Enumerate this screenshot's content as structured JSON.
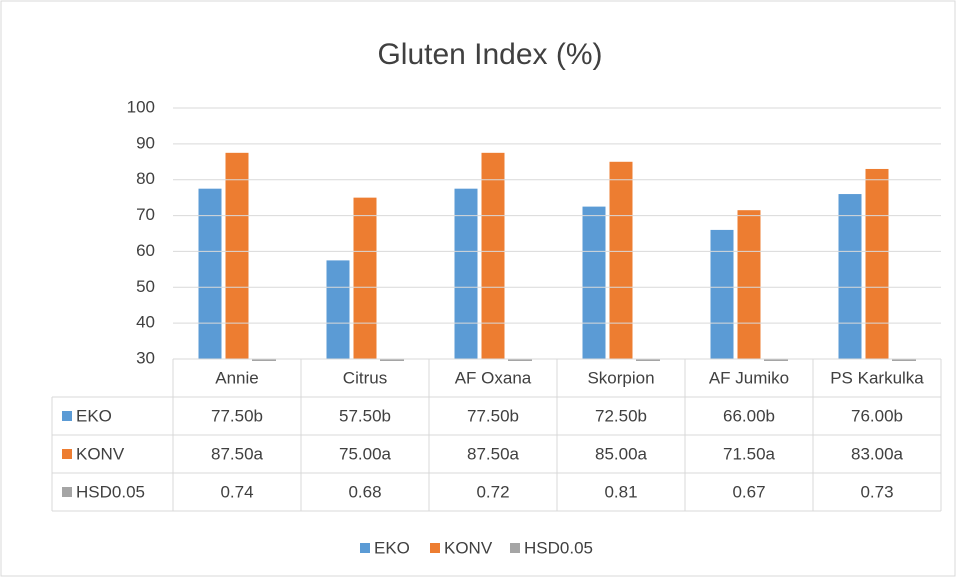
{
  "chart_data": {
    "type": "bar",
    "title": "Gluten Index (%)",
    "categories": [
      "Annie",
      "Citrus",
      "AF Oxana",
      "Skorpion",
      "AF Jumiko",
      "PS Karkulka"
    ],
    "series": [
      {
        "name": "EKO",
        "color": "#5b9bd5",
        "values": [
          77.5,
          57.5,
          77.5,
          72.5,
          66,
          76
        ],
        "value_labels": [
          "77.50b",
          "57.50b",
          "77.50b",
          "72.50b",
          "66.00b",
          "76.00b"
        ]
      },
      {
        "name": "KONV",
        "color": "#ed7d31",
        "values": [
          87.5,
          75,
          87.5,
          85,
          71.5,
          83
        ],
        "value_labels": [
          "87.50a",
          "75.00a",
          "87.50a",
          "85.00a",
          "71.50a",
          "83.00a"
        ]
      },
      {
        "name": "HSD0.05",
        "color": "#a5a5a5",
        "values": [
          0.74,
          0.68,
          0.72,
          0.81,
          0.67,
          0.73
        ]
      }
    ],
    "ylim": [
      30,
      100
    ],
    "yticks": [
      30,
      40,
      50,
      60,
      70,
      80,
      90,
      100
    ],
    "grid": true,
    "legend": "bottom"
  }
}
